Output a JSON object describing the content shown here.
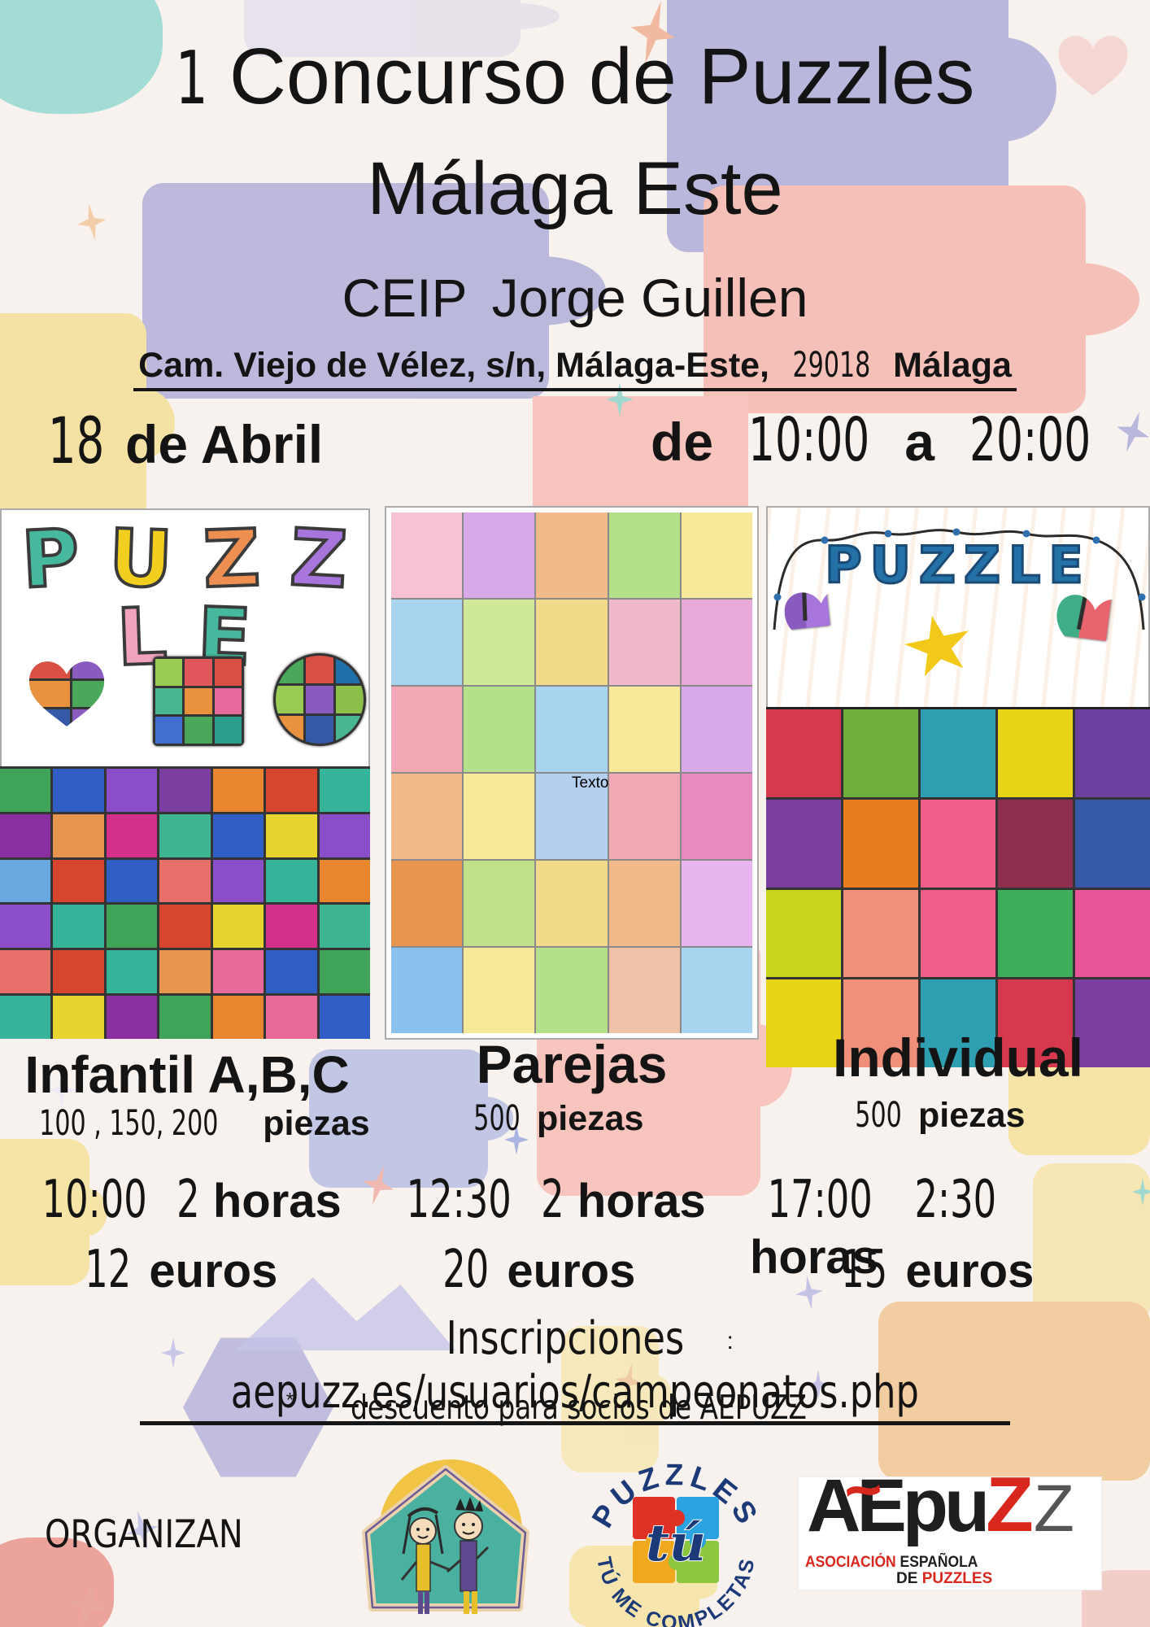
{
  "poster": {
    "title": {
      "number": "1",
      "line1": "Concurso de Puzzles",
      "line2": "Málaga Este"
    },
    "venue": {
      "school_type": "CEIP",
      "school_name": "Jorge Guillen"
    },
    "address": {
      "street": "Cam. Viejo de Vélez, s/n, Málaga-Este,",
      "postal_code": "29018",
      "city": "Málaga"
    },
    "event_date": {
      "day": "18",
      "month_label": "de Abril"
    },
    "event_time": {
      "from_label": "de",
      "start": "10:00",
      "to_label": "a",
      "end": "20:00"
    },
    "categories": [
      {
        "name": "Infantil A,B,C",
        "pieces_numbers": "100 , 150, 200",
        "pieces_label": "piezas",
        "start_time": "10:00",
        "duration_number": "2",
        "duration_label": "horas",
        "price_number": "12",
        "price_label": "euros"
      },
      {
        "name": "Parejas",
        "pieces_numbers": "500",
        "pieces_label": "piezas",
        "start_time": "12:30",
        "duration_number": "2",
        "duration_label": "horas",
        "price_number": "20",
        "price_label": "euros"
      },
      {
        "name": "Individual",
        "pieces_numbers": "500",
        "pieces_label": "piezas",
        "start_time": "17:00",
        "duration_number": "2:30",
        "duration_label": "horas",
        "price_number": "15",
        "price_label": "euros"
      }
    ],
    "registration": {
      "label": "Inscripciones",
      "separator": ":",
      "url": "aepuzz.es/usuarios/campeonatos.php"
    },
    "discount_note": {
      "asterisk": "*",
      "text": "descuento para socios de AEPUZZ"
    },
    "organizers_label": "ORGANIZAN",
    "drawings": {
      "left": {
        "title_letters": [
          {
            "char": "P",
            "color": "#45b89e"
          },
          {
            "char": "U",
            "color": "#f2cf1f"
          },
          {
            "char": "Z",
            "color": "#ee8f52"
          },
          {
            "char": "Z",
            "color": "#a875dc"
          },
          {
            "char": "L",
            "color": "#f2a3bc"
          },
          {
            "char": "E",
            "color": "#45b89e"
          }
        ]
      },
      "middle": {
        "placeholder_label": "Texto"
      },
      "right": {
        "title": "PUZZLE"
      }
    },
    "logos": {
      "puzzles_tu": {
        "arc_top": "PUZZLES",
        "center_script": "tú",
        "arc_bottom": "TÚ ME COMPLETAS"
      },
      "aepuzz": {
        "wordmark_black": "AEpu",
        "wordmark_red_z": "Z",
        "wordmark_gray_z": "Z",
        "tilde": "~",
        "tagline_word1": "ASOCIACIÓN",
        "tagline_word2": "ESPAÑOLA",
        "tagline_word3": "DE",
        "tagline_word4": "PUZZLES"
      }
    },
    "palette": {
      "background": "#f8f2ee",
      "text": "#141414",
      "lavender": "#b9b7dc",
      "salmon": "#f6c3bb",
      "yellow": "#f5e3a5",
      "teal": "#a2dcd4",
      "aepuzz_red": "#d8281e",
      "logo_navy": "#1d3a78",
      "right_title_blue": "#2471a8"
    }
  },
  "grids": {
    "left_bottom": {
      "cols": 7,
      "colors": [
        "#3fa457",
        "#2f5fc4",
        "#8a4fc8",
        "#7a3fa0",
        "#e8862f",
        "#d8452f",
        "#35b49a",
        "#8a2fa0",
        "#e8954f",
        "#d42f8a",
        "#3fb492",
        "#2f5fc4",
        "#e8d42f",
        "#8a4fc8",
        "#6aa8e0",
        "#d8452f",
        "#2f5fc4",
        "#e8706a",
        "#8a4fc8",
        "#35b49a",
        "#e8862f",
        "#8a4fc8",
        "#35b49a",
        "#3fa457",
        "#d8452f",
        "#e8d42f",
        "#d42f8a",
        "#3fb492",
        "#e8706a",
        "#d8452f",
        "#35b49a",
        "#e8954f",
        "#e86a9b",
        "#2f5fc4",
        "#3fa457",
        "#35b49a",
        "#e8d42f",
        "#8a2fa0",
        "#3fa457",
        "#e8862f",
        "#e86a9b",
        "#2f5fc4"
      ]
    },
    "middle": {
      "cols": 5,
      "colors": [
        "#f6c2d4",
        "#d9a8e8",
        "#f2b98a",
        "#b5e08a",
        "#f6ea9a",
        "#a8d4ef",
        "#cfe89a",
        "#f2da8a",
        "#efb9c9",
        "#e8a8d8",
        "#f2a8b5",
        "#b5e08a",
        "#a8d4ef",
        "#f6ea9a",
        "#d9a8e8",
        "#f2b98a",
        "#f6ea9a",
        "#b5cfef",
        "#f2a8b5",
        "#e88ac2",
        "#e8954f",
        "#c2e08a",
        "#f2da8a",
        "#f2b98a",
        "#e8b5ef",
        "#8ac2ef",
        "#f6ea9a",
        "#b5e08a",
        "#efc2a8",
        "#a8d4ef"
      ]
    },
    "right_bottom": {
      "cols": 5,
      "colors": [
        "#d6384e",
        "#6fae3a",
        "#2e9fb0",
        "#e8d416",
        "#6a3f9e",
        "#7b3fa0",
        "#e87d1e",
        "#ef5f8a",
        "#8e2f4f",
        "#3558a8",
        "#c8d41e",
        "#f0907a",
        "#ef5f8a",
        "#3fae5a",
        "#e8559a",
        "#e8d416",
        "#f0907a",
        "#2e9fb0",
        "#d6384e",
        "#7b3fa0"
      ]
    },
    "left_square": {
      "cols": 3,
      "colors": [
        "#9acc55",
        "#e0565a",
        "#d94f43",
        "#49b892",
        "#e8913f",
        "#e66a9b",
        "#3f6fd1",
        "#49a85a",
        "#2a9f8e"
      ]
    },
    "left_circle": {
      "cols": 3,
      "colors": [
        "#49a85a",
        "#d94f43",
        "#1f6fa8",
        "#9acc55",
        "#8a5bbf",
        "#8cc04a",
        "#e8913f",
        "#3558a8",
        "#49b892"
      ]
    },
    "left_heart": {
      "cols": 2,
      "colors": [
        "#d94f43",
        "#8a5bbf",
        "#e8913f",
        "#49a85a",
        "#3558a8",
        "#8a5bbf"
      ]
    }
  }
}
